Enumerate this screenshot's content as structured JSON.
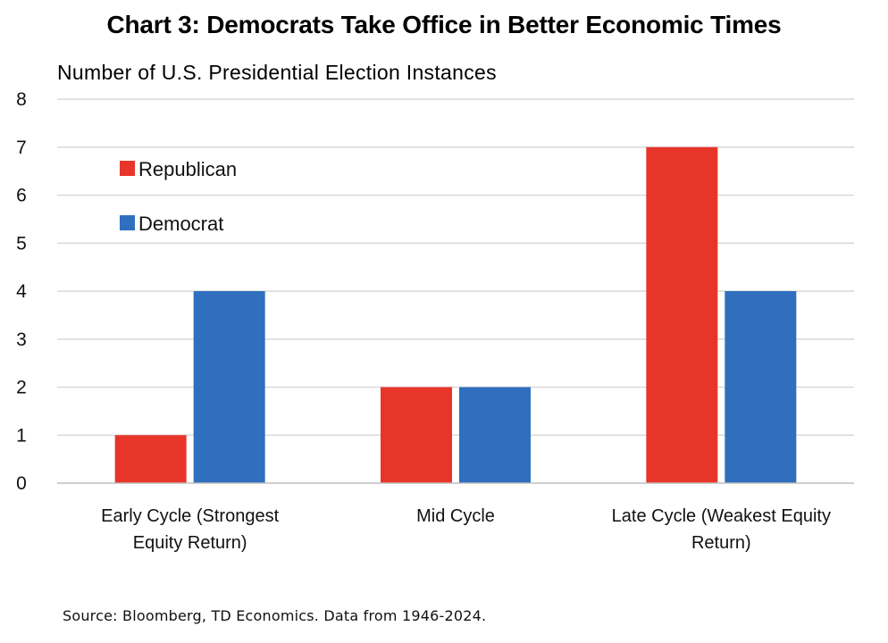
{
  "title": "Chart 3: Democrats Take Office in Better Economic Times",
  "subtitle": "Number of U.S. Presidential Election Instances",
  "source": "Source: Bloomberg, TD Economics. Data from 1946-2024.",
  "colors": {
    "republican": "#e8352a",
    "democrat": "#2f6fbe",
    "grid": "#d9d9d9",
    "axis": "#bfbfbf"
  },
  "chart_data": {
    "type": "bar",
    "categories": [
      [
        "Early Cycle (Strongest",
        "Equity Return)"
      ],
      [
        "Mid Cycle"
      ],
      [
        "Late Cycle (Weakest Equity",
        "Return)"
      ]
    ],
    "series": [
      {
        "name": "Republican",
        "values": [
          1,
          2,
          7
        ],
        "color": "#e8352a"
      },
      {
        "name": "Democrat",
        "values": [
          4,
          2,
          4
        ],
        "color": "#2f6fbe"
      }
    ],
    "ylim": [
      0,
      8
    ],
    "yticks": [
      "0",
      "1",
      "2",
      "3",
      "4",
      "5",
      "6",
      "7",
      "8"
    ],
    "grid": true,
    "legend_position": "top-left"
  }
}
